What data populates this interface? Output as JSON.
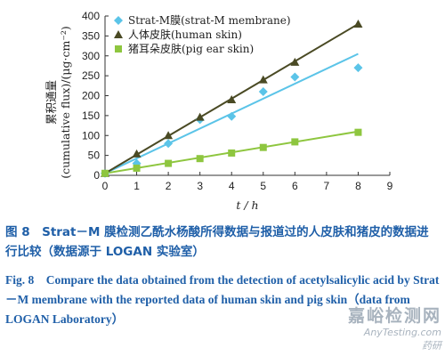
{
  "chart_data": {
    "type": "scatter",
    "x": [
      0,
      1,
      2,
      3,
      4,
      5,
      6,
      8
    ],
    "series": [
      {
        "name": "Strat-M膜(strat-M membrane)",
        "marker": "diamond",
        "color": "#5bc4e8",
        "values": [
          5,
          30,
          80,
          140,
          148,
          210,
          247,
          270
        ],
        "fit": [
          [
            0,
            5
          ],
          [
            8,
            305
          ]
        ]
      },
      {
        "name": "人体皮肤(human skin)",
        "marker": "triangle",
        "color": "#4a4a24",
        "values": [
          5,
          54,
          100,
          146,
          190,
          240,
          284,
          380
        ],
        "fit": [
          [
            0,
            5
          ],
          [
            8,
            380
          ]
        ]
      },
      {
        "name": "猪耳朵皮肤(pig ear skin)",
        "marker": "square",
        "color": "#8ec63f",
        "values": [
          5,
          18,
          30,
          42,
          56,
          70,
          84,
          108
        ],
        "fit": [
          [
            0,
            5
          ],
          [
            8,
            110
          ]
        ]
      }
    ],
    "xlabel": "t / h",
    "ylabel_cn": "累积通量",
    "ylabel_en": "(cumulative flux)/(μg·cm⁻²)",
    "xlim": [
      0,
      9
    ],
    "ylim": [
      0,
      400
    ],
    "xticks": [
      "0",
      "1",
      "2",
      "3",
      "4",
      "5",
      "6",
      "7",
      "8",
      "9"
    ],
    "yticks": [
      "0",
      "50",
      "100",
      "150",
      "200",
      "250",
      "300",
      "350",
      "400"
    ],
    "grid": false,
    "legend_position": "top-left"
  },
  "caption": {
    "cn": "图 8　Strat－M 膜检测乙酰水杨酸所得数据与报道过的人皮肤和猪皮的数据进行比较（数据源于 LOGAN 实验室）",
    "en": "Fig. 8　Compare the data obtained from the detection of acetylsalicylic acid by Strat－M membrane with the reported data of human skin and pig skin（data from LOGAN Laboratory）"
  },
  "watermark": {
    "cn": "嘉峪检测网",
    "en": "AnyTesting.com",
    "tag": "药研"
  }
}
